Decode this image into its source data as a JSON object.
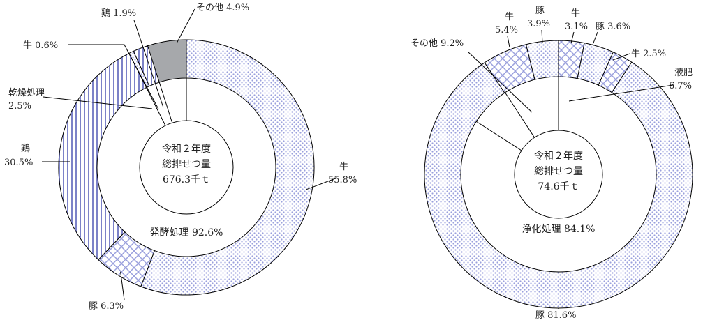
{
  "colors": {
    "dots": "#9aa0dd",
    "stripes": "#7c82c8",
    "other": "#a6a8ab",
    "line": "#000000"
  },
  "chart_data": [
    {
      "type": "pie",
      "center_text": [
        "令和２年度",
        "総排せつ量",
        "676.3千ｔ"
      ],
      "inner_label": "発酵処理 92.6%",
      "inner_ring": [
        {
          "name": "発酵処理",
          "value": 92.6
        },
        {
          "name": "乾燥処理",
          "value": 2.5
        },
        {
          "name": "その他",
          "value": 4.9
        }
      ],
      "outer_ring": [
        {
          "name": "牛",
          "value": 55.8,
          "label": [
            "牛",
            "55.8%"
          ],
          "pattern": "dots"
        },
        {
          "name": "豚",
          "value": 6.3,
          "label": [
            "豚 6.3%"
          ],
          "pattern": "cross"
        },
        {
          "name": "鶏",
          "value": 30.5,
          "label": [
            "鶏",
            "30.5%"
          ],
          "pattern": "stripes"
        },
        {
          "name": "牛",
          "value": 0.6,
          "label": [
            "牛 0.6%"
          ],
          "pattern": "dots"
        },
        {
          "name": "鶏",
          "value": 1.9,
          "label": [
            "鶏 1.9%"
          ],
          "pattern": "stripes"
        },
        {
          "name": "その他",
          "value": 4.9,
          "label": [
            "その他 4.9%"
          ],
          "pattern": "gray"
        }
      ],
      "leader_label": [
        "乾燥処理",
        "2.5%"
      ]
    },
    {
      "type": "pie",
      "center_text": [
        "令和２年度",
        "総排せつ量",
        "74.6千ｔ"
      ],
      "inner_label": "浄化処理 84.1%",
      "inner_ring": [
        {
          "name": "浄化処理",
          "value": 84.1
        },
        {
          "name": "液肥",
          "value": 6.7
        },
        {
          "name": "その他",
          "value": 9.2
        }
      ],
      "outer_ring": [
        {
          "name": "牛",
          "value": 3.1,
          "label": [
            "牛",
            "3.1%"
          ],
          "pattern": "cross"
        },
        {
          "name": "豚",
          "value": 3.6,
          "label": [
            "豚 3.6%"
          ],
          "pattern": "dots"
        },
        {
          "name": "牛",
          "value": 2.5,
          "label": [
            "牛 2.5%"
          ],
          "pattern": "cross"
        },
        {
          "name": "豚",
          "value": 81.6,
          "label": [
            "豚 81.6%"
          ],
          "pattern": "dots"
        },
        {
          "name": "牛",
          "value": 5.4,
          "label": [
            "牛",
            "5.4%"
          ],
          "pattern": "cross"
        },
        {
          "name": "豚",
          "value": 3.9,
          "label": [
            "豚",
            "3.9%"
          ],
          "pattern": "dots"
        }
      ],
      "leader_labels": {
        "liquid": [
          "液肥",
          "6.7%"
        ],
        "other": [
          "その他 9.2%"
        ]
      }
    }
  ]
}
